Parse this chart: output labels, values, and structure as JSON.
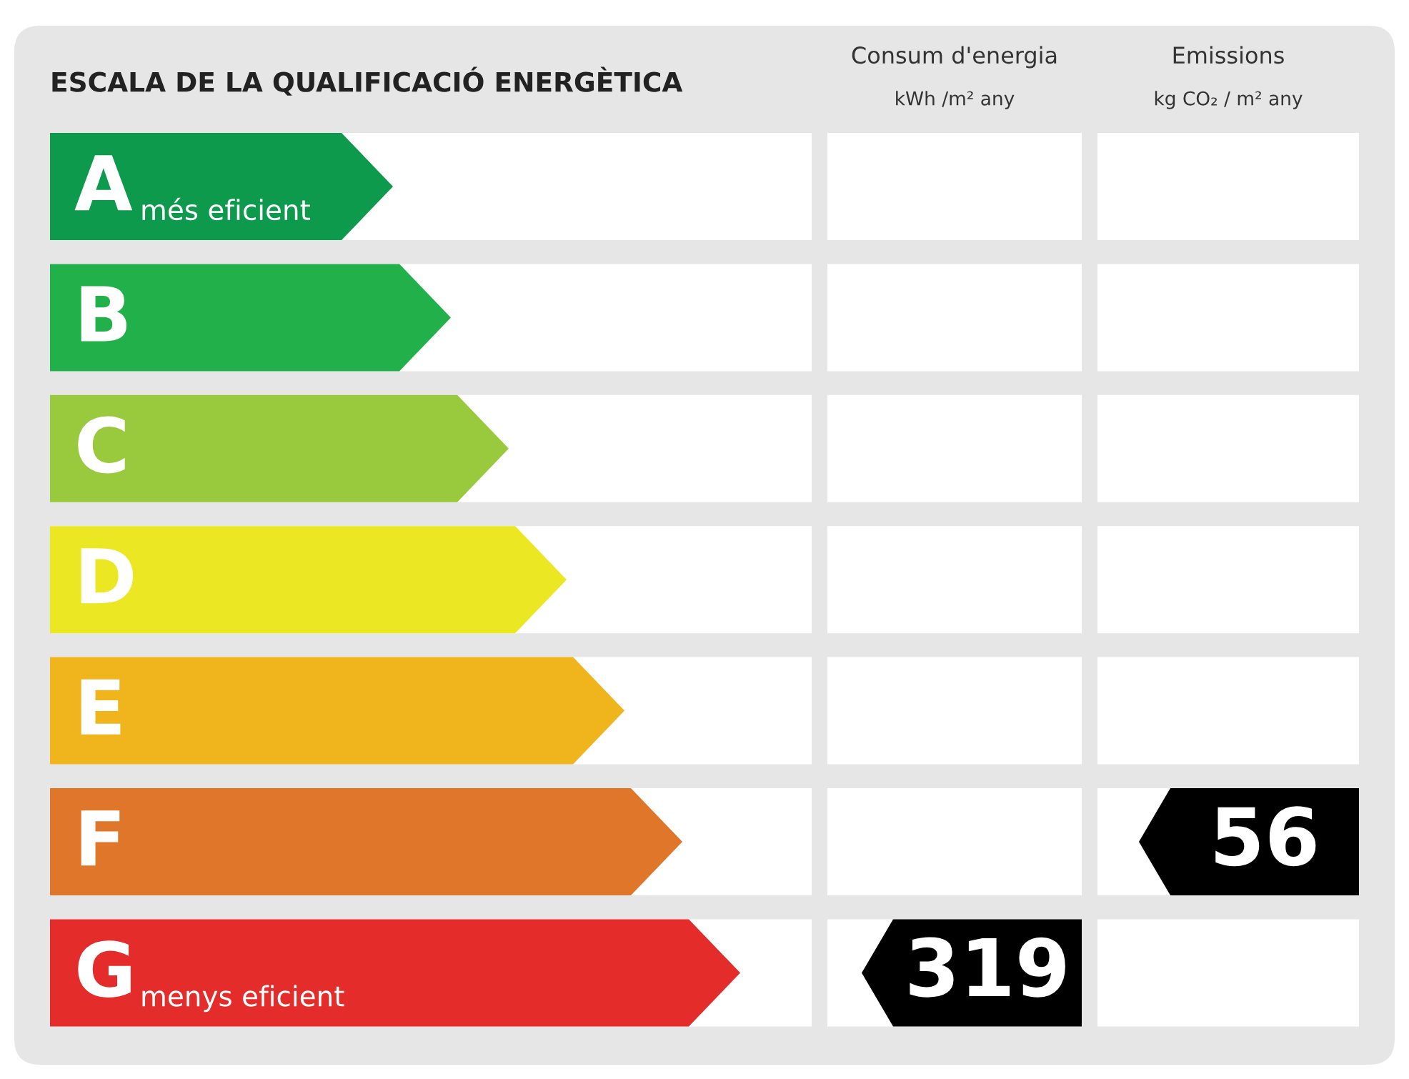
{
  "chart_data": {
    "type": "other",
    "title": "ESCALA DE LA QUALIFICACIÓ ENERGÈTICA",
    "data_labels": true,
    "categories": [
      "A",
      "B",
      "C",
      "D",
      "E",
      "F",
      "G"
    ],
    "colors": [
      "#0e9a4c",
      "#22b04b",
      "#99c93c",
      "#ebe823",
      "#f0b41c",
      "#e0762a",
      "#e42c2a"
    ],
    "annotations": [
      "més eficient",
      "menys eficient",
      "Consum d'energia",
      "kWh /m² any",
      "Emissions",
      "kg CO₂ / m² any"
    ],
    "series": [
      {
        "color": "#000000",
        "values": [
          null,
          null,
          null,
          null,
          null,
          null,
          319
        ]
      },
      {
        "color": "#000000",
        "values": [
          null,
          null,
          null,
          null,
          null,
          56,
          null
        ]
      }
    ]
  }
}
